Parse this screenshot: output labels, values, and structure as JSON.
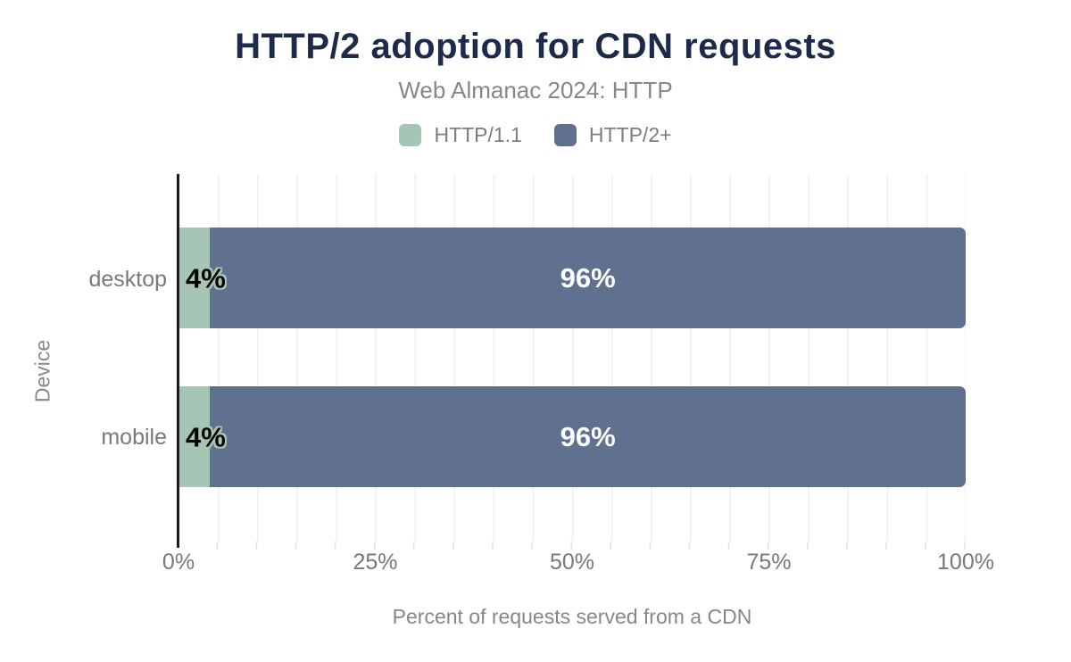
{
  "chart_data": {
    "type": "bar",
    "orientation": "horizontal",
    "stacked": true,
    "title": "HTTP/2 adoption for CDN requests",
    "subtitle": "Web Almanac 2024: HTTP",
    "xlabel": "Percent of requests served from a CDN",
    "ylabel": "Device",
    "categories": [
      "desktop",
      "mobile"
    ],
    "series": [
      {
        "name": "HTTP/1.1",
        "color": "#a5c6b4",
        "values": [
          4,
          4
        ],
        "data_labels": [
          "4%",
          "4%"
        ]
      },
      {
        "name": "HTTP/2+",
        "color": "#5f718f",
        "values": [
          96,
          96
        ],
        "data_labels": [
          "96%",
          "96%"
        ]
      }
    ],
    "xlim": [
      0,
      100
    ],
    "x_tick_labels": [
      "0%",
      "25%",
      "50%",
      "75%",
      "100%"
    ],
    "grid": {
      "vertical_minor_every_pct": 5,
      "horizontal": false
    },
    "legend_position": "top-center"
  },
  "colors": {
    "title_text": "#1e2a4a",
    "muted_text": "#85878a",
    "tick_text": "#76787a",
    "series_http11": "#a5c6b4",
    "series_http2plus": "#5f718f",
    "axis_line": "#1c1c1c",
    "gridline": "#efefef",
    "data_label_on_green": "#000000",
    "data_label_on_blue": "#ffffff"
  }
}
